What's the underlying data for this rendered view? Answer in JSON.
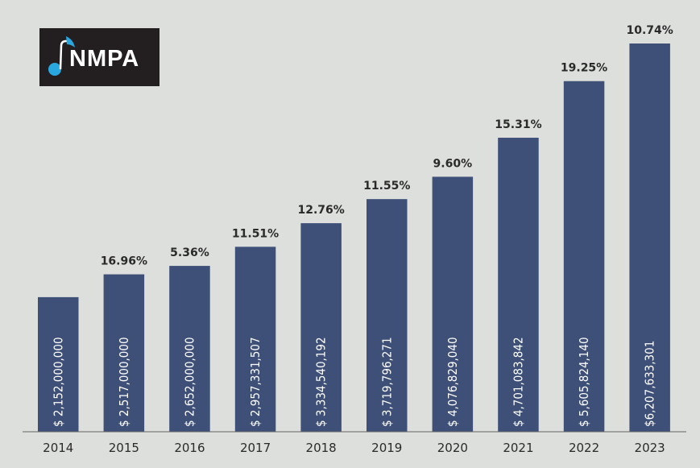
{
  "logo": {
    "text": "NMPA"
  },
  "chart_data": {
    "type": "bar",
    "title": "",
    "xlabel": "",
    "ylabel": "",
    "categories": [
      "2014",
      "2015",
      "2016",
      "2017",
      "2018",
      "2019",
      "2020",
      "2021",
      "2022",
      "2023"
    ],
    "values": [
      2152000000,
      2517000000,
      2652000000,
      2957331507,
      3334540192,
      3719796271,
      4076829040,
      4701083842,
      5605824140,
      6207633301
    ],
    "value_labels": [
      "$ 2,152,000,000",
      "$ 2,517,000,000",
      "$ 2,652,000,000",
      "$ 2,957,331,507",
      "$ 3,334,540,192",
      "$ 3,719,796,271",
      "$ 4,076,829,040",
      "$ 4,701,083,842",
      "$ 5,605,824,140",
      "$6,207,633,301"
    ],
    "growth_labels": [
      "",
      "16.96%",
      "5.36%",
      "11.51%",
      "12.76%",
      "11.55%",
      "9.60%",
      "15.31%",
      "19.25%",
      "10.74%"
    ],
    "ylim": [
      0,
      6207633301
    ],
    "grid": false,
    "bar_color": "#3f5078"
  }
}
